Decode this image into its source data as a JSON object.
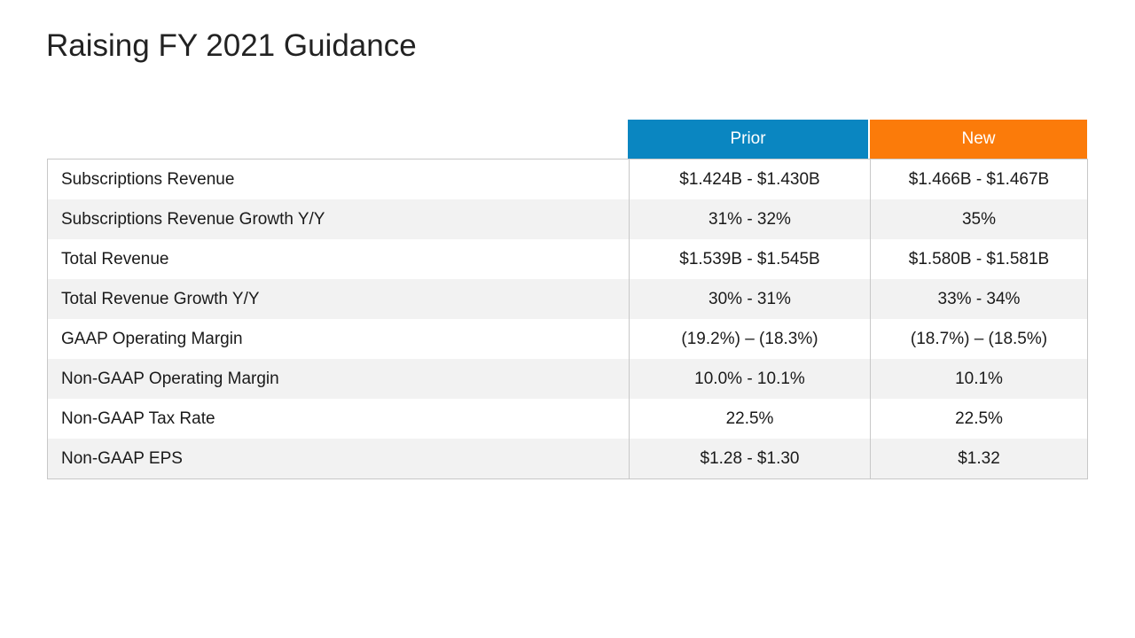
{
  "title": "Raising FY 2021 Guidance",
  "columns": {
    "prior": "Prior",
    "new": "New"
  },
  "colors": {
    "prior": "#0a86c1",
    "new": "#fb7b0a"
  },
  "rows": [
    {
      "label": "Subscriptions Revenue",
      "prior": "$1.424B - $1.430B",
      "new": "$1.466B - $1.467B"
    },
    {
      "label": "Subscriptions Revenue Growth Y/Y",
      "prior": "31% - 32%",
      "new": "35%"
    },
    {
      "label": "Total Revenue",
      "prior": "$1.539B - $1.545B",
      "new": "$1.580B - $1.581B"
    },
    {
      "label": "Total Revenue Growth Y/Y",
      "prior": "30% - 31%",
      "new": "33% - 34%"
    },
    {
      "label": "GAAP Operating Margin",
      "prior": "(19.2%) – (18.3%)",
      "new": "(18.7%) – (18.5%)"
    },
    {
      "label": "Non-GAAP Operating Margin",
      "prior": "10.0% - 10.1%",
      "new": "10.1%"
    },
    {
      "label": "Non-GAAP Tax Rate",
      "prior": "22.5%",
      "new": "22.5%"
    },
    {
      "label": "Non-GAAP EPS",
      "prior": "$1.28 - $1.30",
      "new": "$1.32"
    }
  ]
}
